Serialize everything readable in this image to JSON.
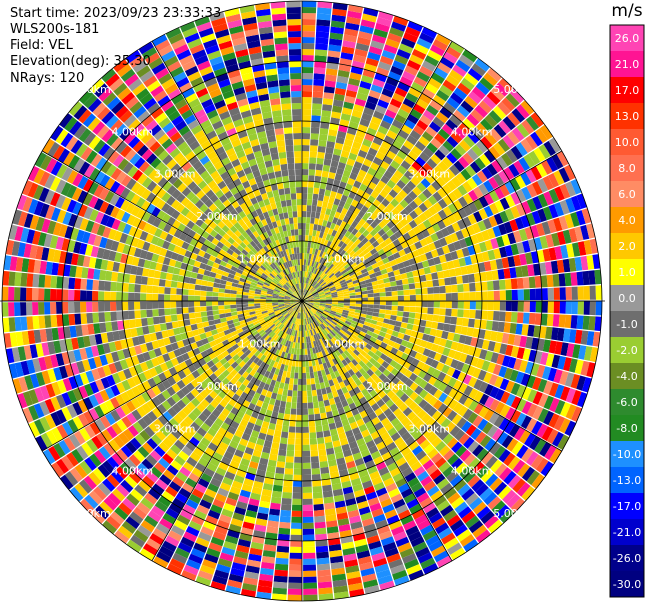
{
  "header": {
    "start_time": "Start time: 2023/09/23 23:33:33",
    "instrument": "WLS200s-181",
    "field": "Field: VEL",
    "elevation": "Elevation(deg): 35.30",
    "nrays": "NRays: 120"
  },
  "chart_data": {
    "type": "heatmap",
    "projection": "polar PPI",
    "field": "VEL",
    "n_rays": 120,
    "elevation_deg": 35.3,
    "range_rings_km": [
      1.0,
      2.0,
      3.0,
      4.0,
      5.0
    ],
    "ring_labels": [
      "1.00km",
      "2.00km",
      "3.00km",
      "4.00km",
      "5.00km"
    ],
    "colorbar": {
      "unit": "m/s",
      "ticks": [
        "26.0",
        "21.0",
        "17.0",
        "13.0",
        "10.0",
        "8.0",
        "6.0",
        "4.0",
        "2.0",
        "1.0",
        "0.0",
        "-1.0",
        "-2.0",
        "-4.0",
        "-6.0",
        "-8.0",
        "-10.0",
        "-13.0",
        "-17.0",
        "-21.0",
        "-26.0",
        "-30.0"
      ],
      "colors": [
        "#ff44b4",
        "#ff1493",
        "#ff0000",
        "#ff3200",
        "#ff5a32",
        "#ff7050",
        "#ff8c64",
        "#ff9a00",
        "#ffc800",
        "#ffff00",
        "#999999",
        "#6e6e6e",
        "#9acd32",
        "#6b8e23",
        "#2e8b2e",
        "#228b22",
        "#1e90ff",
        "#0064ff",
        "#0000ff",
        "#0000cd",
        "#00008b",
        "#000080"
      ]
    },
    "inner_field": {
      "positive_color": "#ffd700",
      "near_zero_color": "#6e6e6e",
      "negative_color": "#9acd32",
      "noise_palette": [
        "#ff1493",
        "#ff0000",
        "#0000ff",
        "#ffff00",
        "#2e8b2e",
        "#00008b",
        "#ff9a00",
        "#ff44b4",
        "#9acd32",
        "#6e6e6e",
        "#ff5a32",
        "#0064ff",
        "#ffc800",
        "#228b22",
        "#ff7050",
        "#1e90ff",
        "#000080",
        "#ff3200",
        "#999999",
        "#0000cd",
        "#ff8c64",
        "#6b8e23"
      ]
    }
  }
}
